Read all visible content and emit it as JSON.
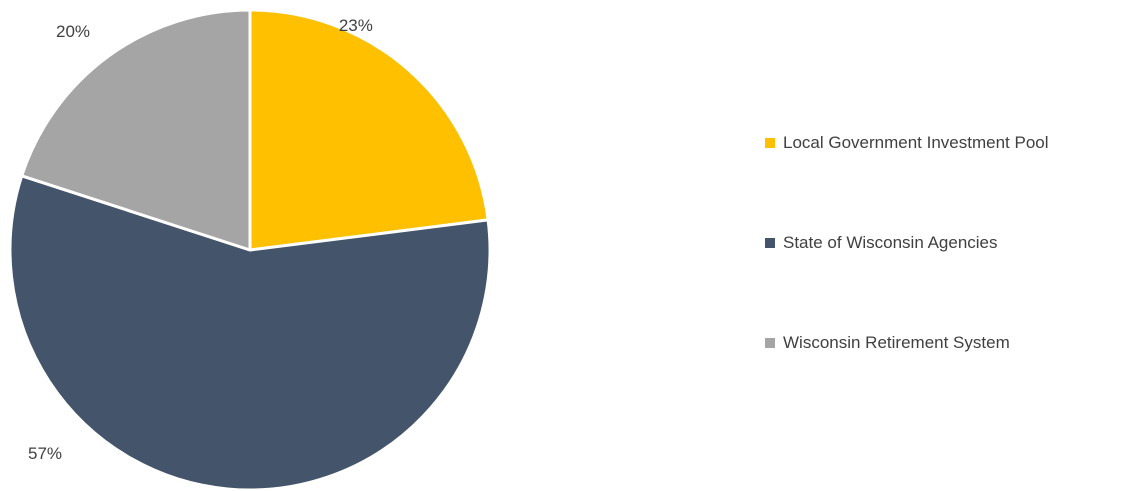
{
  "chart_data": {
    "type": "pie",
    "title": "",
    "start_angle_deg": 0,
    "direction": "clockwise",
    "legend_position": "right",
    "slices": [
      {
        "label": "Local Government Investment Pool",
        "value": 23,
        "display": "23%",
        "color": "#FFC000"
      },
      {
        "label": "State of Wisconsin Agencies",
        "value": 57,
        "display": "57%",
        "color": "#44546A"
      },
      {
        "label": "Wisconsin Retirement System",
        "value": 20,
        "display": "20%",
        "color": "#A5A5A5"
      }
    ]
  },
  "legend": {
    "items": [
      {
        "label": "Local Government Investment Pool",
        "color": "#FFC000"
      },
      {
        "label": "State of Wisconsin Agencies",
        "color": "#44546A"
      },
      {
        "label": "Wisconsin Retirement System",
        "color": "#A5A5A5"
      }
    ]
  }
}
